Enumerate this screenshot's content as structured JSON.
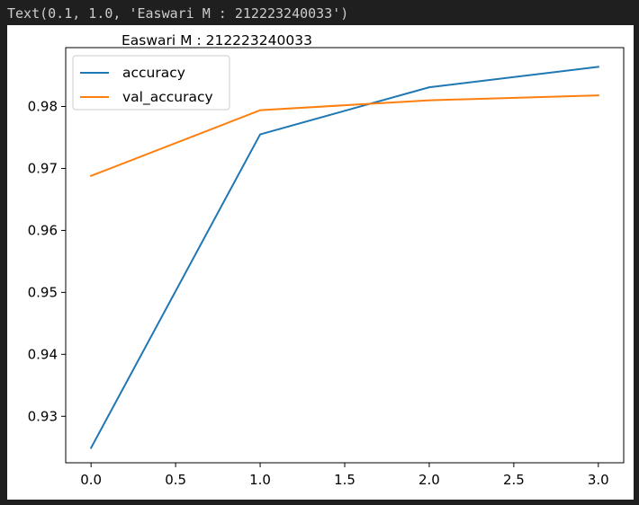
{
  "output": {
    "text": "Text(0.1, 1.0, 'Easwari M : 212223240033')"
  },
  "colors": {
    "background": "#1f1f1f",
    "accuracy": "#1f77b4",
    "val_accuracy": "#ff7f0e"
  },
  "chart_data": {
    "type": "line",
    "title": "Easwari M : 212223240033",
    "xlabel": "",
    "ylabel": "",
    "x": [
      0,
      1,
      2,
      3
    ],
    "xlim": [
      -0.15,
      3.15
    ],
    "ylim": [
      0.9225,
      0.9895
    ],
    "xticks": [
      0.0,
      0.5,
      1.0,
      1.5,
      2.0,
      2.5,
      3.0
    ],
    "xtick_labels": [
      "0.0",
      "0.5",
      "1.0",
      "1.5",
      "2.0",
      "2.5",
      "3.0"
    ],
    "yticks": [
      0.93,
      0.94,
      0.95,
      0.96,
      0.97,
      0.98
    ],
    "ytick_labels": [
      "0.93",
      "0.94",
      "0.95",
      "0.96",
      "0.97",
      "0.98"
    ],
    "series": [
      {
        "name": "accuracy",
        "color": "#1f77b4",
        "values": [
          0.9249,
          0.9755,
          0.9831,
          0.9864
        ]
      },
      {
        "name": "val_accuracy",
        "color": "#ff7f0e",
        "values": [
          0.9688,
          0.9794,
          0.981,
          0.9818
        ]
      }
    ],
    "legend": {
      "position": "upper-left",
      "entries": [
        "accuracy",
        "val_accuracy"
      ]
    },
    "grid": false
  }
}
